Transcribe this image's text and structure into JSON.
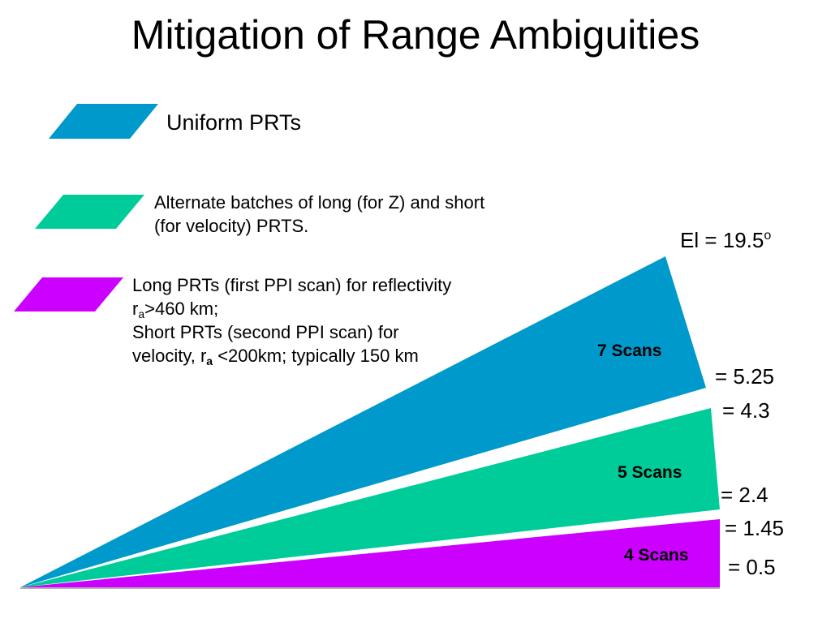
{
  "title": "Mitigation of Range Ambiguities",
  "legend": [
    {
      "label": "Uniform PRTs",
      "color": "#0099CC"
    },
    {
      "lines": [
        "Alternate batches of long (for Z) and short",
        "(for velocity) PRTS."
      ],
      "color": "#00CC99"
    },
    {
      "line1": "Long PRTs (first PPI scan) for reflectivity",
      "line2_r": "r",
      "line2_sub": "a",
      "line2_rest": ">460 km;",
      "line3": "Short PRTs (second PPI scan) for",
      "line4_pre": "velocity, r",
      "line4_sub": "a",
      "line4_rest": " <200km; typically 150 km",
      "color": "#CC00FF"
    }
  ],
  "sectors": [
    {
      "label": "7 Scans",
      "color": "#0099CC"
    },
    {
      "label": "5 Scans",
      "color": "#00CC99"
    },
    {
      "label": "4 Scans",
      "color": "#CC00FF"
    }
  ],
  "elevations": {
    "top_prefix": "El = 19.5",
    "top_sup": "o",
    "e1": "= 5.25",
    "e2": "= 4.3",
    "e3": "= 2.4",
    "e4": "= 1.45",
    "e5": "= 0.5"
  }
}
